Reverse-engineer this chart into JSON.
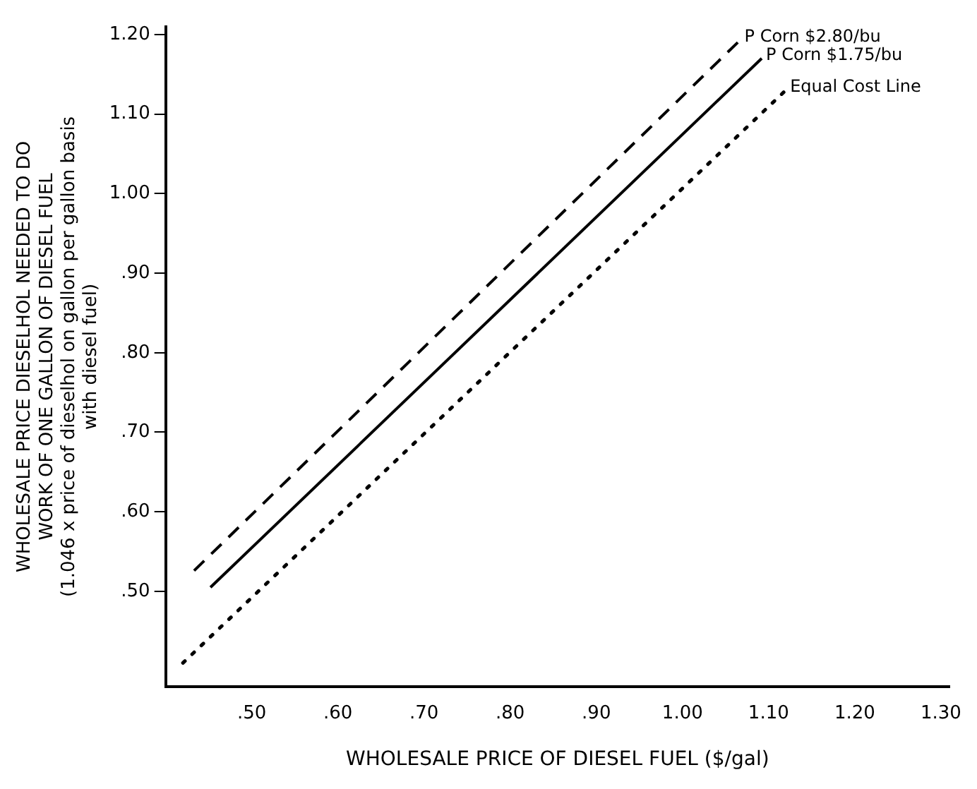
{
  "chart_data": {
    "type": "line",
    "xlabel": "WHOLESALE PRICE OF DIESEL FUEL ($/gal)",
    "ylabel": "WHOLESALE PRICE DIESELHOL NEEDED TO DO\nWORK OF ONE GALLON OF DIESEL FUEL\n(1.046 x price of dieselhol on gallon per gallon basis\nwith diesel fuel)",
    "series": [
      {
        "name": "P Corn $2.80/bu",
        "color": "#000000",
        "line_style": "dashed",
        "x": [
          0.433,
          1.067
        ],
        "values": [
          0.526,
          1.193
        ]
      },
      {
        "name": "P Corn $1.75/bu",
        "color": "#000000",
        "line_style": "solid",
        "x": [
          0.452,
          1.092
        ],
        "values": [
          0.505,
          1.17
        ]
      },
      {
        "name": "Equal Cost Line",
        "color": "#000000",
        "line_style": "dotted",
        "x": [
          0.42,
          1.12
        ],
        "values": [
          0.41,
          1.13
        ]
      }
    ],
    "xlim": [
      0.4,
      1.31
    ],
    "ylim": [
      0.38,
      1.21
    ],
    "xticks": [
      {
        "value": 0.5,
        "label": ".50"
      },
      {
        "value": 0.6,
        "label": ".60"
      },
      {
        "value": 0.7,
        "label": ".70"
      },
      {
        "value": 0.8,
        "label": ".80"
      },
      {
        "value": 0.9,
        "label": ".90"
      },
      "1.00",
      "1.10",
      "1.20",
      "1.30"
    ],
    "yticks": [
      {
        "value": 0.5,
        "label": ".50"
      },
      {
        "value": 0.6,
        "label": ".60"
      },
      {
        "value": 0.7,
        "label": ".70"
      },
      {
        "value": 0.8,
        "label": ".80"
      },
      {
        "value": 0.9,
        "label": ".90"
      },
      "1.00",
      "1.10",
      "1.20"
    ],
    "grid": false,
    "legend": false,
    "marker": "none"
  }
}
